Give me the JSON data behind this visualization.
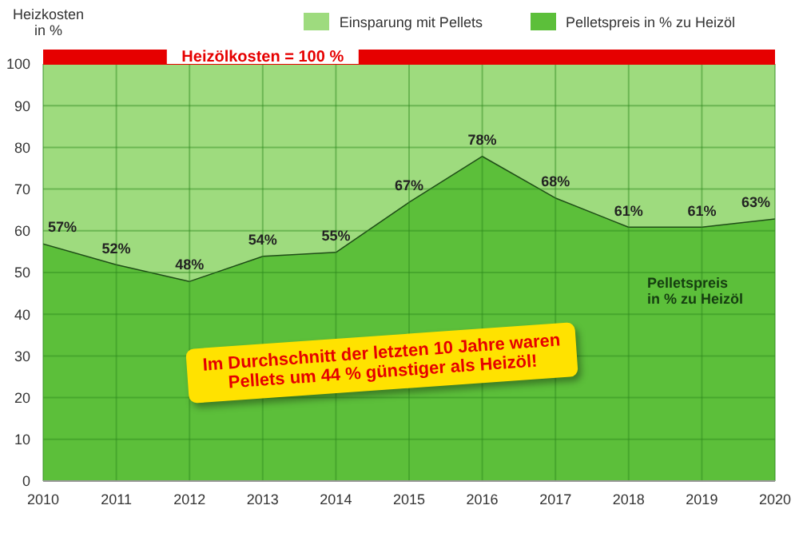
{
  "chart_data": {
    "type": "area",
    "stacked": true,
    "ylabel": "Heizkosten\nin %",
    "x": [
      2010,
      2011,
      2012,
      2013,
      2014,
      2015,
      2016,
      2017,
      2018,
      2019,
      2020
    ],
    "xlim": [
      2010,
      2020
    ],
    "xticks": [
      2010,
      2011,
      2012,
      2013,
      2014,
      2015,
      2016,
      2017,
      2018,
      2019,
      2020
    ],
    "ylim": [
      0,
      100
    ],
    "yticks": [
      0,
      10,
      20,
      30,
      40,
      50,
      60,
      70,
      80,
      90,
      100
    ],
    "grid": true,
    "legend": "top right",
    "series": [
      {
        "name": "Pelletspreis in % zu Heizöl",
        "color": "#5cbf3a",
        "values": [
          57,
          52,
          48,
          54,
          55,
          67,
          78,
          68,
          61,
          61,
          63
        ],
        "value_labels": [
          "57%",
          "52%",
          "48%",
          "54%",
          "55%",
          "67%",
          "78%",
          "68%",
          "61%",
          "61%",
          "63%"
        ]
      },
      {
        "name": "Einsparung mit Pellets",
        "color": "#9edb7e",
        "values": [
          43,
          48,
          52,
          46,
          45,
          33,
          22,
          32,
          39,
          39,
          37
        ]
      }
    ],
    "ref_lines": [
      {
        "axis": "y",
        "value": 100,
        "label": "Heizölkosten = 100 %",
        "color": "#e60000"
      }
    ],
    "annotations": [
      "Pelletspreis\nin % zu Heizöl",
      "Im Durchschnitt der letzten 10 Jahre waren\nPellets um 44 % günstiger als Heizöl!"
    ]
  }
}
